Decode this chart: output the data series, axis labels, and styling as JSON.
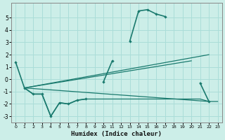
{
  "xlabel": "Humidex (Indice chaleur)",
  "background_color": "#cceee8",
  "grid_color": "#aaddd8",
  "line_color": "#1a7a6e",
  "x_values": [
    0,
    1,
    2,
    3,
    4,
    5,
    6,
    7,
    8,
    9,
    10,
    11,
    12,
    13,
    14,
    15,
    16,
    17,
    18,
    19,
    20,
    21,
    22,
    23
  ],
  "main_curve": [
    1.4,
    -0.7,
    -1.2,
    -1.2,
    -3.0,
    -1.9,
    -2.0,
    -1.7,
    -1.6,
    null,
    -0.2,
    1.5,
    null,
    3.1,
    5.55,
    5.65,
    5.3,
    5.1,
    null,
    null,
    null,
    -0.3,
    -1.8,
    null
  ],
  "low_curve": [
    null,
    -0.7,
    -1.2,
    -1.2,
    -3.0,
    -1.9,
    -2.0,
    -1.7,
    -1.6,
    -1.6,
    -1.6,
    -1.6,
    -1.6,
    -1.6,
    -1.6,
    -1.6,
    -1.6,
    -1.6,
    -1.6,
    -1.6,
    -1.6,
    -1.6,
    -1.8,
    -1.8
  ],
  "trend1_x": [
    1,
    22
  ],
  "trend1_y": [
    -0.7,
    2.0
  ],
  "trend2_x": [
    1,
    20
  ],
  "trend2_y": [
    -0.7,
    1.5
  ],
  "trend3_x": [
    1,
    22
  ],
  "trend3_y": [
    -0.7,
    -1.8
  ],
  "xlim": [
    0,
    23
  ],
  "ylim": [
    -3.5,
    6.2
  ],
  "yticks": [
    -3,
    -2,
    -1,
    0,
    1,
    2,
    3,
    4,
    5
  ],
  "xticks": [
    0,
    1,
    2,
    3,
    4,
    5,
    6,
    7,
    8,
    9,
    10,
    11,
    12,
    13,
    14,
    15,
    16,
    17,
    18,
    19,
    20,
    21,
    22,
    23
  ]
}
